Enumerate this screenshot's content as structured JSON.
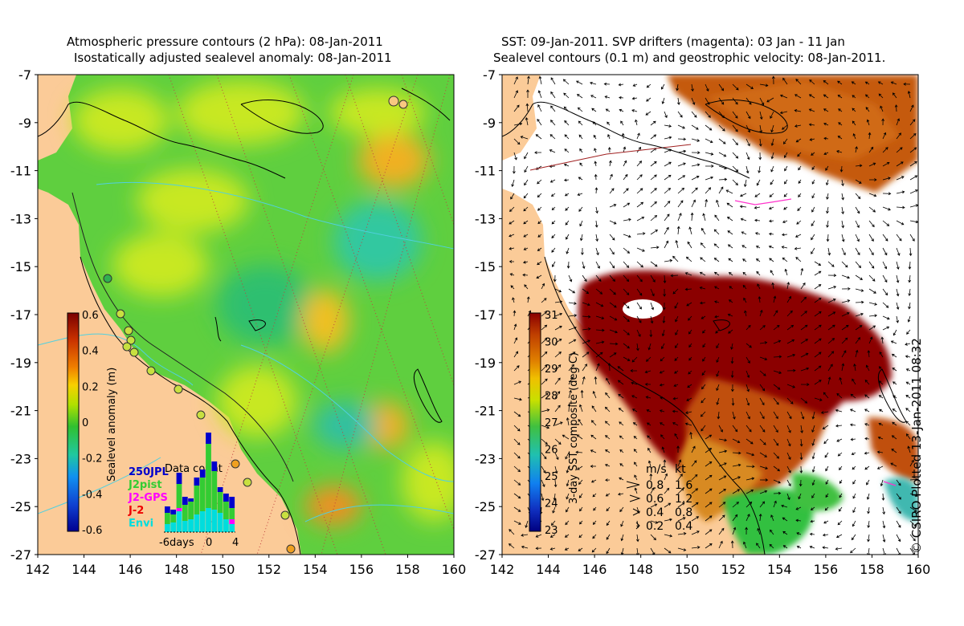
{
  "left_panel": {
    "title_line1": "Atmospheric pressure contours (2 hPa): 08-Jan-2011",
    "title_line2": "Isostatically adjusted sealevel anomaly: 08-Jan-2011",
    "y_ticks": [
      "-7",
      "-9",
      "-11",
      "-13",
      "-15",
      "-17",
      "-19",
      "-21",
      "-23",
      "-25",
      "-27"
    ],
    "x_ticks": [
      "142",
      "144",
      "146",
      "148",
      "150",
      "152",
      "154",
      "156",
      "158",
      "160"
    ],
    "colorbar": {
      "label": "Sealevel anomaly (m)",
      "ticks": [
        "0.6",
        "0.4",
        "0.2",
        "0",
        "-0.2",
        "-0.4",
        "-0.6"
      ],
      "colors": [
        "#7a0000",
        "#c83000",
        "#f08000",
        "#f8d000",
        "#b0e000",
        "#30c030",
        "#20c8a0",
        "#1090f0",
        "#1040d0",
        "#000090"
      ]
    },
    "inset": {
      "title": "Data count",
      "legend": [
        {
          "label": "250JPL",
          "color": "#0000cc"
        },
        {
          "label": "J2pist",
          "color": "#33cc33"
        },
        {
          "label": "J2-GPS",
          "color": "#ff00ff"
        },
        {
          "label": "J-2",
          "color": "#ee0000"
        },
        {
          "label": "Envi",
          "color": "#00dddd"
        }
      ],
      "axis": [
        "-6days",
        "0",
        "4"
      ]
    }
  },
  "right_panel": {
    "title_line1": "SST: 09-Jan-2011. SVP drifters (magenta): 03 Jan - 11 Jan",
    "title_line2": "Sealevel contours (0.1 m) and geostrophic velocity: 08-Jan-2011.",
    "y_ticks": [
      "-7",
      "-9",
      "-11",
      "-13",
      "-15",
      "-17",
      "-19",
      "-21",
      "-23",
      "-25",
      "-27"
    ],
    "x_ticks": [
      "142",
      "144",
      "146",
      "148",
      "150",
      "152",
      "154",
      "156",
      "158",
      "160"
    ],
    "colorbar": {
      "label": "3-day SST composite (deg C)",
      "ticks": [
        "31",
        "30",
        "29",
        "28",
        "27",
        "26",
        "25",
        "24",
        "23"
      ],
      "colors": [
        "#8a0000",
        "#c04000",
        "#e08000",
        "#f0c000",
        "#c8e000",
        "#40c040",
        "#20c0b0",
        "#1080f0",
        "#1030c0",
        "#000080"
      ]
    },
    "velocity_key": {
      "header": [
        "m/s",
        "kt"
      ],
      "rows": [
        [
          "0.8",
          "1.6"
        ],
        [
          "0.6",
          "1.2"
        ],
        [
          "0.4",
          "0.8"
        ],
        [
          "0.2",
          "0.4"
        ]
      ]
    }
  },
  "credit": "© CSIRO Plotted 13-Jan-2011 08:32",
  "colors": {
    "land": "#fbcb98",
    "ocean_green": "#5fcf3f",
    "ocean_yellow": "#d8ef20",
    "sst_hot": "#8b0000"
  }
}
